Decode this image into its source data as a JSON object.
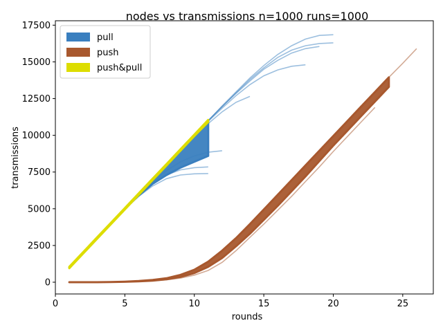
{
  "chart_data": {
    "type": "line",
    "title": "nodes vs transmissions n=1000 runs=1000",
    "xlabel": "rounds",
    "ylabel": "transmissions",
    "xlim": [
      0,
      27.2
    ],
    "ylim": [
      -800,
      17800
    ],
    "xticks": [
      0,
      5,
      10,
      15,
      20,
      25
    ],
    "yticks": [
      0,
      2500,
      5000,
      7500,
      10000,
      12500,
      15000,
      17500
    ],
    "grid": false,
    "legend_position": "top-left",
    "legend": [
      {
        "label": "pull",
        "color": "#3a7fbf"
      },
      {
        "label": "push",
        "color": "#a8582e"
      },
      {
        "label": "push&pull",
        "color": "#dddd00"
      }
    ],
    "series": [
      {
        "name": "pull",
        "color": "#3a7fbf",
        "band": {
          "x": [
            1,
            2,
            3,
            4,
            5,
            6,
            7,
            8,
            9,
            10,
            11
          ],
          "low": [
            1000,
            2000,
            3000,
            4000,
            5000,
            5900,
            6700,
            7300,
            7800,
            8200,
            8600
          ],
          "high": [
            1000,
            2000,
            3000,
            4000,
            5000,
            6000,
            7000,
            8000,
            9000,
            10000,
            11000
          ]
        },
        "runs": [
          {
            "x": [
              1,
              2,
              3,
              4,
              5,
              6,
              7,
              8,
              9,
              10,
              11
            ],
            "y": [
              1000,
              2000,
              3000,
              4000,
              5000,
              5850,
              6550,
              7050,
              7300,
              7380,
              7400
            ]
          },
          {
            "x": [
              1,
              2,
              3,
              4,
              5,
              6,
              7,
              8,
              9,
              10,
              11
            ],
            "y": [
              1000,
              2000,
              3000,
              4000,
              5000,
              5900,
              6700,
              7300,
              7650,
              7800,
              7850
            ]
          },
          {
            "x": [
              1,
              2,
              3,
              4,
              5,
              6,
              7,
              8,
              9,
              10,
              11,
              12
            ],
            "y": [
              1000,
              2000,
              3000,
              4000,
              5000,
              5950,
              6850,
              7600,
              8200,
              8600,
              8850,
              8950
            ]
          },
          {
            "x": [
              1,
              2,
              3,
              4,
              5,
              6,
              7,
              8,
              9,
              10,
              11,
              12,
              13,
              14
            ],
            "y": [
              1000,
              2000,
              3000,
              4000,
              5000,
              6000,
              7000,
              8000,
              9000,
              9950,
              10800,
              11600,
              12250,
              12650
            ]
          },
          {
            "x": [
              1,
              2,
              3,
              4,
              5,
              6,
              7,
              8,
              9,
              10,
              11,
              12,
              13,
              14,
              15,
              16,
              17,
              18
            ],
            "y": [
              1000,
              2000,
              3000,
              4000,
              5000,
              6000,
              7000,
              8000,
              9000,
              10000,
              10950,
              11850,
              12700,
              13450,
              14050,
              14450,
              14700,
              14800
            ]
          },
          {
            "x": [
              1,
              2,
              3,
              4,
              5,
              6,
              7,
              8,
              9,
              10,
              11,
              12,
              13,
              14,
              15,
              16,
              17,
              18,
              19
            ],
            "y": [
              1000,
              2000,
              3000,
              4000,
              5000,
              6000,
              7000,
              8000,
              9000,
              10000,
              11000,
              11950,
              12850,
              13700,
              14500,
              15100,
              15600,
              15900,
              16050
            ]
          },
          {
            "x": [
              1,
              2,
              3,
              4,
              5,
              6,
              7,
              8,
              9,
              10,
              11,
              12,
              13,
              14,
              15,
              16,
              17,
              18,
              19,
              20
            ],
            "y": [
              1000,
              2000,
              3000,
              4000,
              5000,
              6000,
              7000,
              8000,
              9000,
              10000,
              11000,
              11950,
              12900,
              13800,
              14600,
              15300,
              15800,
              16100,
              16250,
              16300
            ]
          },
          {
            "x": [
              1,
              2,
              3,
              4,
              5,
              6,
              7,
              8,
              9,
              10,
              11,
              12,
              13,
              14,
              15,
              16,
              17,
              18,
              19,
              20
            ],
            "y": [
              1000,
              2000,
              3000,
              4000,
              5000,
              6000,
              7000,
              8000,
              9000,
              10000,
              11000,
              12000,
              12950,
              13900,
              14750,
              15500,
              16100,
              16550,
              16800,
              16850
            ]
          }
        ]
      },
      {
        "name": "push",
        "color": "#a8582e",
        "band": {
          "x": [
            1,
            2,
            3,
            4,
            5,
            6,
            7,
            8,
            9,
            10,
            11,
            12,
            13,
            14,
            15,
            16,
            17,
            18,
            19,
            20,
            21,
            22,
            23,
            24
          ],
          "low": [
            0,
            0,
            0,
            10,
            30,
            60,
            110,
            200,
            360,
            620,
            1050,
            1650,
            2450,
            3300,
            4250,
            5200,
            6200,
            7200,
            8250,
            9300,
            10300,
            11300,
            12300,
            13300
          ],
          "high": [
            0,
            0,
            0,
            10,
            40,
            80,
            150,
            270,
            500,
            850,
            1400,
            2150,
            3000,
            3950,
            4950,
            5950,
            6950,
            7950,
            8950,
            9950,
            10950,
            11950,
            12950,
            13950
          ]
        },
        "runs": [
          {
            "x": [
              1,
              2,
              3,
              4,
              5,
              6,
              7,
              8,
              9,
              10,
              11,
              12,
              13,
              14,
              15,
              16,
              17,
              18,
              19,
              20,
              21,
              22,
              23
            ],
            "y": [
              0,
              0,
              0,
              10,
              25,
              50,
              90,
              160,
              280,
              480,
              800,
              1350,
              2150,
              3050,
              3950,
              4900,
              5850,
              6850,
              7850,
              8900,
              9900,
              10900,
              11900
            ]
          },
          {
            "x": [
              1,
              2,
              3,
              4,
              5,
              6,
              7,
              8,
              9,
              10,
              11,
              12,
              13,
              14,
              15,
              16,
              17,
              18,
              19,
              20,
              21,
              22,
              23,
              24,
              25,
              26
            ],
            "y": [
              0,
              0,
              0,
              10,
              40,
              80,
              150,
              270,
              500,
              850,
              1400,
              2150,
              3000,
              3950,
              4950,
              5950,
              6950,
              7950,
              8950,
              9950,
              10950,
              11950,
              12950,
              13950,
              14900,
              15900
            ]
          }
        ]
      },
      {
        "name": "push&pull",
        "color": "#dddd00",
        "band": {
          "x": [
            1,
            2,
            3,
            4,
            5,
            6,
            7,
            8,
            9,
            10,
            11
          ],
          "low": [
            950,
            1950,
            2950,
            3950,
            4950,
            5950,
            6950,
            7950,
            8950,
            9950,
            10900
          ],
          "high": [
            1050,
            2050,
            3050,
            4050,
            5050,
            6050,
            7050,
            8050,
            9050,
            10050,
            11050
          ]
        },
        "runs": []
      }
    ]
  }
}
